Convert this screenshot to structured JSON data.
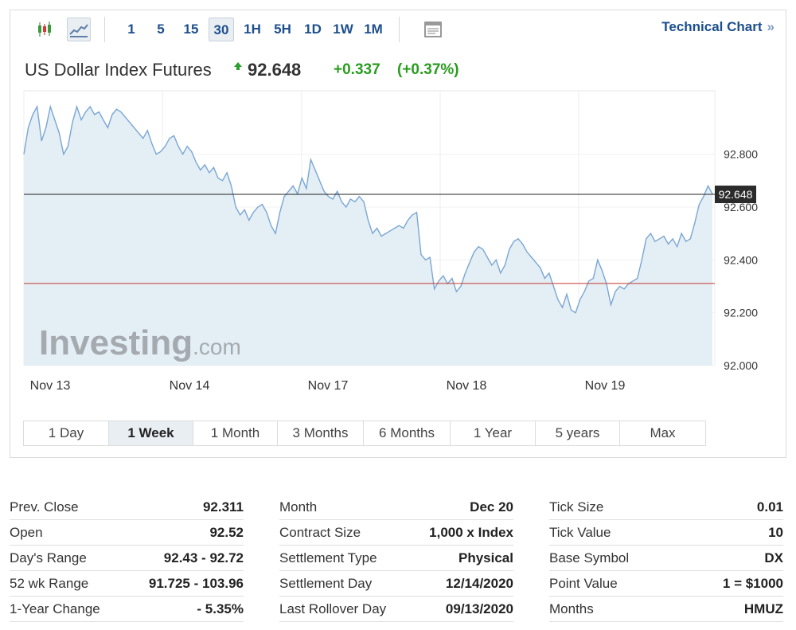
{
  "toolbar": {
    "intervals": [
      "1",
      "5",
      "15",
      "30",
      "1H",
      "5H",
      "1D",
      "1W",
      "1M"
    ],
    "active_interval": "30",
    "technical_chart_label": "Technical Chart",
    "technical_chart_chevron": "»"
  },
  "quote": {
    "name": "US Dollar Index Futures",
    "direction_icon": "up-arrow-icon",
    "price": "92.648",
    "change": "+0.337",
    "change_percent": "(+0.37%)",
    "up_color": "#2a9d1f"
  },
  "chart_data": {
    "type": "area",
    "x_tick_labels": [
      "Nov 13",
      "Nov 14",
      "Nov 17",
      "Nov 18",
      "Nov 19"
    ],
    "y_tick_labels": [
      "92.800",
      "92.600",
      "92.400",
      "92.200",
      "92.000"
    ],
    "ylim": [
      92.0,
      93.04
    ],
    "current_price_label": "92.648",
    "current_price": 92.648,
    "prev_close_line": 92.311,
    "watermark": "Investing.com",
    "series": [
      {
        "values": [
          92.8,
          92.9,
          92.95,
          92.98,
          92.85,
          92.9,
          92.98,
          92.93,
          92.88,
          92.8,
          92.83,
          92.92,
          92.98,
          92.93,
          92.96,
          92.98,
          92.95,
          92.96,
          92.93,
          92.9,
          92.95,
          92.97,
          92.96,
          92.94,
          92.92,
          92.9,
          92.88,
          92.86,
          92.89,
          92.84,
          92.8,
          92.81,
          92.83,
          92.86,
          92.87,
          92.83,
          92.8,
          92.83,
          92.81,
          92.77,
          92.74,
          92.76,
          92.73,
          92.75,
          92.71,
          92.7,
          92.73,
          92.68,
          92.6,
          92.57,
          92.59,
          92.55,
          92.58,
          92.6,
          92.61,
          92.58,
          92.53,
          92.5,
          92.58,
          92.64,
          92.66,
          92.68,
          92.65,
          92.71,
          92.67,
          92.78,
          92.74,
          92.7,
          92.66,
          92.64,
          92.63,
          92.66,
          92.62,
          92.6,
          92.63,
          92.62,
          92.64,
          92.62,
          92.55,
          92.5,
          92.52,
          92.49,
          92.5,
          92.51,
          92.52,
          92.53,
          92.52,
          92.55,
          92.57,
          92.58,
          92.42,
          92.4,
          92.41,
          92.29,
          92.32,
          92.34,
          92.31,
          92.33,
          92.28,
          92.3,
          92.35,
          92.39,
          92.43,
          92.45,
          92.44,
          92.41,
          92.38,
          92.4,
          92.35,
          92.38,
          92.44,
          92.47,
          92.48,
          92.46,
          92.43,
          92.41,
          92.39,
          92.37,
          92.33,
          92.35,
          92.3,
          92.25,
          92.22,
          92.27,
          92.21,
          92.2,
          92.25,
          92.28,
          92.32,
          92.33,
          92.4,
          92.36,
          92.31,
          92.23,
          92.28,
          92.3,
          92.29,
          92.31,
          92.32,
          92.33,
          92.4,
          92.48,
          92.5,
          92.47,
          92.48,
          92.49,
          92.46,
          92.48,
          92.45,
          92.5,
          92.47,
          92.48,
          92.54,
          92.61,
          92.64,
          92.68,
          92.65
        ]
      }
    ]
  },
  "range_tabs": {
    "items": [
      "1 Day",
      "1 Week",
      "1 Month",
      "3 Months",
      "6 Months",
      "1 Year",
      "5 years",
      "Max"
    ],
    "active": "1 Week"
  },
  "stats": {
    "col1": [
      {
        "label": "Prev. Close",
        "value": "92.311"
      },
      {
        "label": "Open",
        "value": "92.52"
      },
      {
        "label": "Day's Range",
        "value": "92.43 - 92.72"
      },
      {
        "label": "52 wk Range",
        "value": "91.725 - 103.96"
      },
      {
        "label": "1-Year Change",
        "value": "- 5.35%"
      }
    ],
    "col2": [
      {
        "label": "Month",
        "value": "Dec 20"
      },
      {
        "label": "Contract Size",
        "value": "1,000 x Index"
      },
      {
        "label": "Settlement Type",
        "value": "Physical"
      },
      {
        "label": "Settlement Day",
        "value": "12/14/2020"
      },
      {
        "label": "Last Rollover Day",
        "value": "09/13/2020"
      }
    ],
    "col3": [
      {
        "label": "Tick Size",
        "value": "0.01"
      },
      {
        "label": "Tick Value",
        "value": "10"
      },
      {
        "label": "Base Symbol",
        "value": "DX"
      },
      {
        "label": "Point Value",
        "value": "1 = $1000"
      },
      {
        "label": "Months",
        "value": "HMUZ"
      }
    ]
  }
}
